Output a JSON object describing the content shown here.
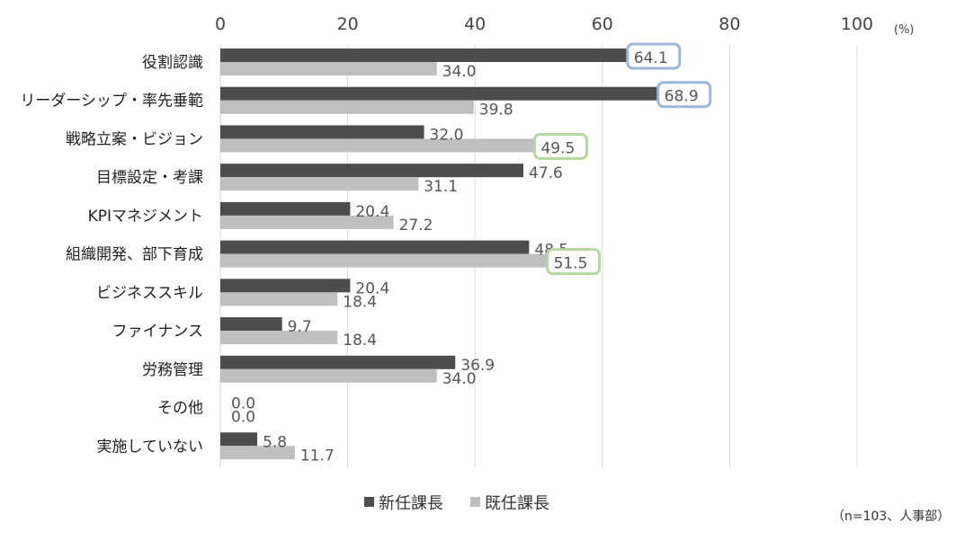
{
  "chart_data": {
    "type": "bar",
    "orientation": "horizontal",
    "unit_label": "(%)",
    "xlim": [
      0,
      100
    ],
    "xticks": [
      0,
      20,
      40,
      60,
      80,
      100
    ],
    "grid": true,
    "legend_position": "bottom",
    "categories": [
      "役割認識",
      "リーダーシップ・率先垂範",
      "戦略立案・ビジョン",
      "目標設定・考課",
      "KPIマネジメント",
      "組織開発、部下育成",
      "ビジネススキル",
      "ファイナンス",
      "労務管理",
      "その他",
      "実施していない"
    ],
    "series": [
      {
        "name": "新任課長",
        "color": "#4d4d4d",
        "values": [
          64.1,
          68.9,
          32.0,
          47.6,
          20.4,
          48.5,
          20.4,
          9.7,
          36.9,
          0.0,
          5.8
        ],
        "highlight": [
          0,
          1
        ]
      },
      {
        "name": "既任課長",
        "color": "#bfbfbf",
        "values": [
          34.0,
          39.8,
          49.5,
          31.1,
          27.2,
          51.5,
          18.4,
          18.4,
          34.0,
          0.0,
          11.7
        ],
        "highlight": [
          2,
          5
        ]
      }
    ],
    "highlight_colors": [
      "#9fb6db",
      "#b6d7a0"
    ],
    "note": "（n=103、人事部）"
  }
}
